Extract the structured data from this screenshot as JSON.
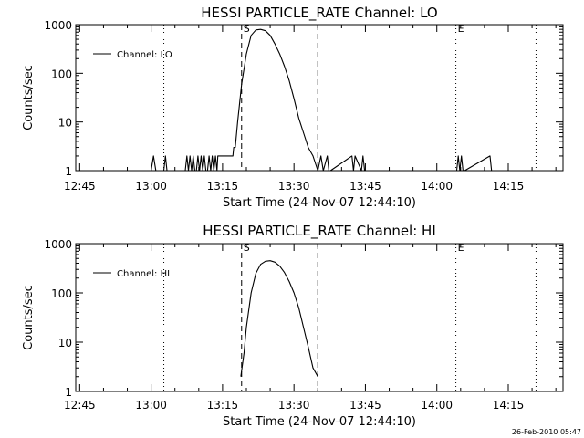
{
  "footer": {
    "timestamp": "26-Feb-2010 05:47"
  },
  "chart_data": [
    {
      "type": "line",
      "title": "HESSI PARTICLE_RATE Channel: LO",
      "xlabel": "Start Time (24-Nov-07 12:44:10)",
      "ylabel": "Counts/sec",
      "y_scale": "log",
      "ylim": [
        1,
        1000
      ],
      "y_ticks": [
        1,
        10,
        100,
        1000
      ],
      "y_tick_labels": [
        "1",
        "10",
        "100",
        "1000"
      ],
      "x_ticks": [
        "12:45",
        "13:00",
        "13:15",
        "13:30",
        "13:45",
        "14:00",
        "14:15"
      ],
      "xlim": [
        "12:44:10",
        "14:26:30"
      ],
      "legend": {
        "label": "Channel: LO",
        "position": "top-left"
      },
      "markers": [
        {
          "label": "S",
          "time": "13:19:00",
          "style": "dashed"
        },
        {
          "label": "E",
          "time": "14:04:00",
          "style": "dotted"
        }
      ],
      "vlines": [
        {
          "time": "13:02:40",
          "style": "dotted"
        },
        {
          "time": "13:35:00",
          "style": "dashed"
        },
        {
          "time": "14:20:50",
          "style": "dotted"
        }
      ],
      "series": [
        {
          "name": "Channel: LO",
          "x": [
            "13:00:00",
            "13:00:30",
            "13:01:00",
            "13:02:40",
            "13:03:00",
            "13:03:20",
            "13:07:10",
            "13:07:30",
            "13:07:50",
            "13:08:10",
            "13:08:30",
            "13:08:50",
            "13:09:10",
            "13:09:30",
            "13:09:50",
            "13:10:10",
            "13:10:30",
            "13:10:50",
            "13:11:10",
            "13:11:30",
            "13:11:50",
            "13:12:10",
            "13:12:30",
            "13:12:50",
            "13:13:10",
            "13:13:30",
            "13:13:50",
            "13:14:00",
            "13:14:10",
            "13:14:30",
            "13:17:10",
            "13:17:20",
            "13:17:40",
            "13:18:10",
            "13:19:00",
            "13:20:00",
            "13:21:00",
            "13:22:00",
            "13:23:00",
            "13:24:00",
            "13:25:00",
            "13:26:00",
            "13:27:00",
            "13:28:00",
            "13:29:00",
            "13:30:00",
            "13:31:00",
            "13:32:00",
            "13:33:00",
            "13:34:00",
            "13:35:00",
            "13:35:40",
            "13:36:10",
            "13:37:00",
            "13:37:20",
            "13:37:40",
            "13:42:10",
            "13:42:30",
            "13:42:50",
            "13:44:10",
            "13:44:30",
            "13:44:50",
            "14:04:10",
            "14:04:30",
            "14:04:50",
            "14:05:10",
            "14:05:30",
            "14:05:50",
            "14:11:10",
            "14:11:30",
            "14:11:50"
          ],
          "y": [
            1,
            2,
            1,
            1,
            2,
            1,
            1,
            2,
            1,
            2,
            1,
            2,
            1,
            1,
            2,
            1,
            2,
            1,
            2,
            1,
            1,
            2,
            1,
            2,
            1,
            2,
            1,
            2,
            2,
            2,
            2,
            3,
            3,
            10,
            60,
            250,
            600,
            780,
            800,
            750,
            600,
            400,
            250,
            140,
            70,
            30,
            12,
            6,
            3,
            2,
            1,
            2,
            1,
            2,
            1,
            1,
            2,
            1,
            2,
            1,
            2,
            1,
            1,
            2,
            1,
            2,
            1,
            1,
            2,
            1,
            1
          ]
        }
      ]
    },
    {
      "type": "line",
      "title": "HESSI PARTICLE_RATE Channel: HI",
      "xlabel": "Start Time (24-Nov-07 12:44:10)",
      "ylabel": "Counts/sec",
      "y_scale": "log",
      "ylim": [
        1,
        1000
      ],
      "y_ticks": [
        1,
        10,
        100,
        1000
      ],
      "y_tick_labels": [
        "1",
        "10",
        "100",
        "1000"
      ],
      "x_ticks": [
        "12:45",
        "13:00",
        "13:15",
        "13:30",
        "13:45",
        "14:00",
        "14:15"
      ],
      "xlim": [
        "12:44:10",
        "14:26:30"
      ],
      "legend": {
        "label": "Channel: HI",
        "position": "top-left"
      },
      "markers": [
        {
          "label": "S",
          "time": "13:19:00",
          "style": "dashed"
        },
        {
          "label": "E",
          "time": "14:04:00",
          "style": "dotted"
        }
      ],
      "vlines": [
        {
          "time": "13:02:40",
          "style": "dotted"
        },
        {
          "time": "13:35:00",
          "style": "dashed"
        },
        {
          "time": "14:20:50",
          "style": "dotted"
        }
      ],
      "series": [
        {
          "name": "Channel: HI",
          "x": [
            "13:18:50",
            "13:19:30",
            "13:20:00",
            "13:21:00",
            "13:22:00",
            "13:23:00",
            "13:24:00",
            "13:25:00",
            "13:26:00",
            "13:27:00",
            "13:28:00",
            "13:29:00",
            "13:30:00",
            "13:31:00",
            "13:32:00",
            "13:33:00",
            "13:34:00",
            "13:35:00"
          ],
          "y": [
            2,
            6,
            20,
            100,
            250,
            380,
            440,
            450,
            420,
            350,
            260,
            170,
            100,
            50,
            20,
            8,
            3,
            2
          ]
        }
      ]
    }
  ]
}
